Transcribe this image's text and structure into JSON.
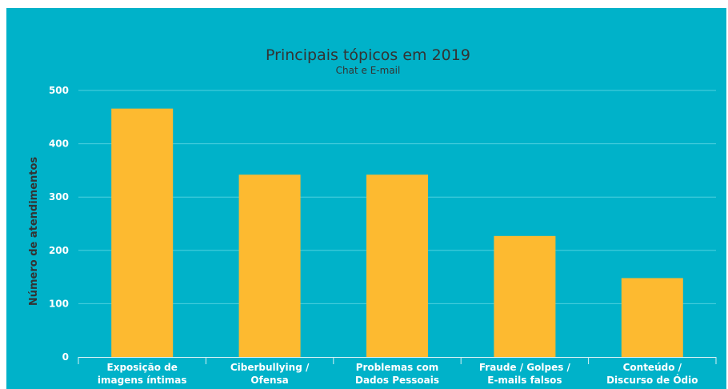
{
  "chart_data": {
    "type": "bar",
    "title": "Principais tópicos em 2019",
    "subtitle": "Chat e E-mail",
    "ylabel": "Número de atendimentos",
    "xlabel": "",
    "ylim": [
      0,
      500
    ],
    "yticks": [
      "0",
      "100",
      "200",
      "300",
      "400",
      "500"
    ],
    "grid": true,
    "categories": [
      [
        "Exposição de",
        "imagens íntimas"
      ],
      [
        "Ciberbullying /",
        "Ofensa"
      ],
      [
        "Problemas com",
        "Dados Pessoais"
      ],
      [
        "Fraude / Golpes /",
        "E-mails falsos"
      ],
      [
        "Conteúdo /",
        "Discurso de Ódio"
      ]
    ],
    "values": [
      466,
      342,
      342,
      227,
      148
    ],
    "colors": {
      "background": "#00b2c9",
      "bar": "#fdba30",
      "grid": "#4fd0df",
      "text_dark": "#333333",
      "text_light": "#ffffff"
    }
  }
}
